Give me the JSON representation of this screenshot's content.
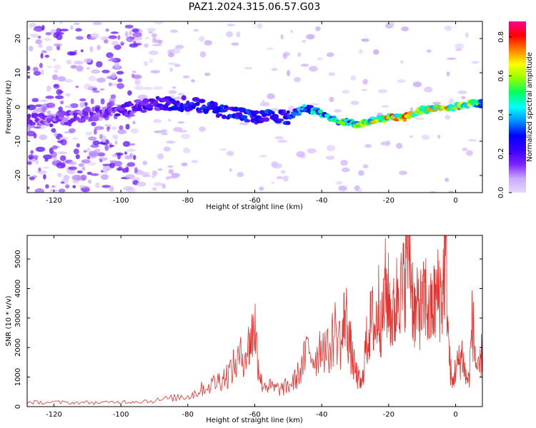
{
  "title": "PAZ1.2024.315.06.57.G03",
  "chart_data": [
    {
      "type": "heatmap",
      "xlabel": "Height of straight line (km)",
      "ylabel": "Frequency (Hz)",
      "xlim": [
        -128,
        8
      ],
      "ylim": [
        -25,
        25
      ],
      "x_ticks": [
        -120,
        -100,
        -80,
        -60,
        -40,
        -20,
        0
      ],
      "y_ticks": [
        -20,
        -10,
        0,
        10,
        20
      ],
      "colorbar": {
        "label": "Normalized spectral amplitude",
        "ticks": [
          0.0,
          0.2,
          0.4,
          0.6,
          0.8
        ],
        "range": [
          0.0,
          0.88
        ],
        "colormap": [
          "#e8d8ff",
          "#c9a8ff",
          "#7a20ff",
          "#3a00ff",
          "#0000ff",
          "#0090ff",
          "#00ffff",
          "#00ff60",
          "#90ff00",
          "#ffff00",
          "#ff8000",
          "#ff0000",
          "#ff0090"
        ]
      },
      "ridge": {
        "x": [
          -128,
          -120,
          -110,
          -100,
          -90,
          -80,
          -70,
          -60,
          -50,
          -45,
          -40,
          -35,
          -30,
          -25,
          -20,
          -15,
          -10,
          -5,
          0,
          5,
          8
        ],
        "freq": [
          -4,
          -4,
          -2,
          -1,
          1,
          1,
          -1,
          -3,
          -3,
          0,
          -2,
          -4,
          -5,
          -4,
          -3,
          -3,
          -1,
          0,
          0,
          1,
          1
        ],
        "amplitude": [
          0.15,
          0.15,
          0.15,
          0.18,
          0.22,
          0.3,
          0.3,
          0.3,
          0.3,
          0.4,
          0.45,
          0.5,
          0.5,
          0.65,
          0.7,
          0.7,
          0.6,
          0.65,
          0.7,
          0.6,
          0.5
        ]
      }
    },
    {
      "type": "line",
      "xlabel": "Height of straight line (km)",
      "ylabel": "SNR (10 * v/v)",
      "xlim": [
        -128,
        8
      ],
      "ylim": [
        0,
        5800
      ],
      "x_ticks": [
        -120,
        -100,
        -80,
        -60,
        -40,
        -20,
        0
      ],
      "y_ticks": [
        0,
        1000,
        2000,
        3000,
        4000,
        5000
      ],
      "series": [
        {
          "color": "#e8302c",
          "x": [
            -128,
            -125,
            -120,
            -115,
            -110,
            -105,
            -100,
            -95,
            -90,
            -85,
            -80,
            -78,
            -75,
            -72,
            -70,
            -68,
            -66,
            -64,
            -62,
            -61,
            -60,
            -59,
            -58,
            -56,
            -54,
            -52,
            -50,
            -48,
            -46,
            -44,
            -42,
            -40,
            -38,
            -36,
            -34,
            -33,
            -32,
            -31,
            -30,
            -29,
            -28,
            -27,
            -26,
            -25,
            -24,
            -23,
            -22,
            -21,
            -20,
            -19,
            -18,
            -17,
            -16,
            -15,
            -14,
            -13,
            -12,
            -11,
            -10,
            -9,
            -8,
            -7,
            -6,
            -5,
            -4,
            -3,
            -2,
            -1,
            0,
            1,
            2,
            3,
            4,
            5,
            6,
            7,
            8
          ],
          "y": [
            150,
            140,
            150,
            130,
            140,
            130,
            160,
            180,
            200,
            280,
            350,
            450,
            650,
            800,
            950,
            1100,
            1400,
            1700,
            2000,
            2300,
            2800,
            1500,
            800,
            700,
            600,
            600,
            700,
            900,
            1300,
            2000,
            1600,
            2200,
            1800,
            2600,
            2100,
            3300,
            2400,
            1700,
            1200,
            900,
            700,
            1900,
            2500,
            3000,
            2600,
            3500,
            2700,
            4000,
            3600,
            3000,
            3200,
            4400,
            3600,
            4800,
            5900,
            4000,
            3000,
            3500,
            3200,
            3800,
            3000,
            3300,
            3600,
            3900,
            3700,
            5400,
            1800,
            700,
            1300,
            1500,
            1800,
            1000,
            900,
            3000,
            1500,
            1100,
            2000
          ]
        }
      ]
    }
  ]
}
